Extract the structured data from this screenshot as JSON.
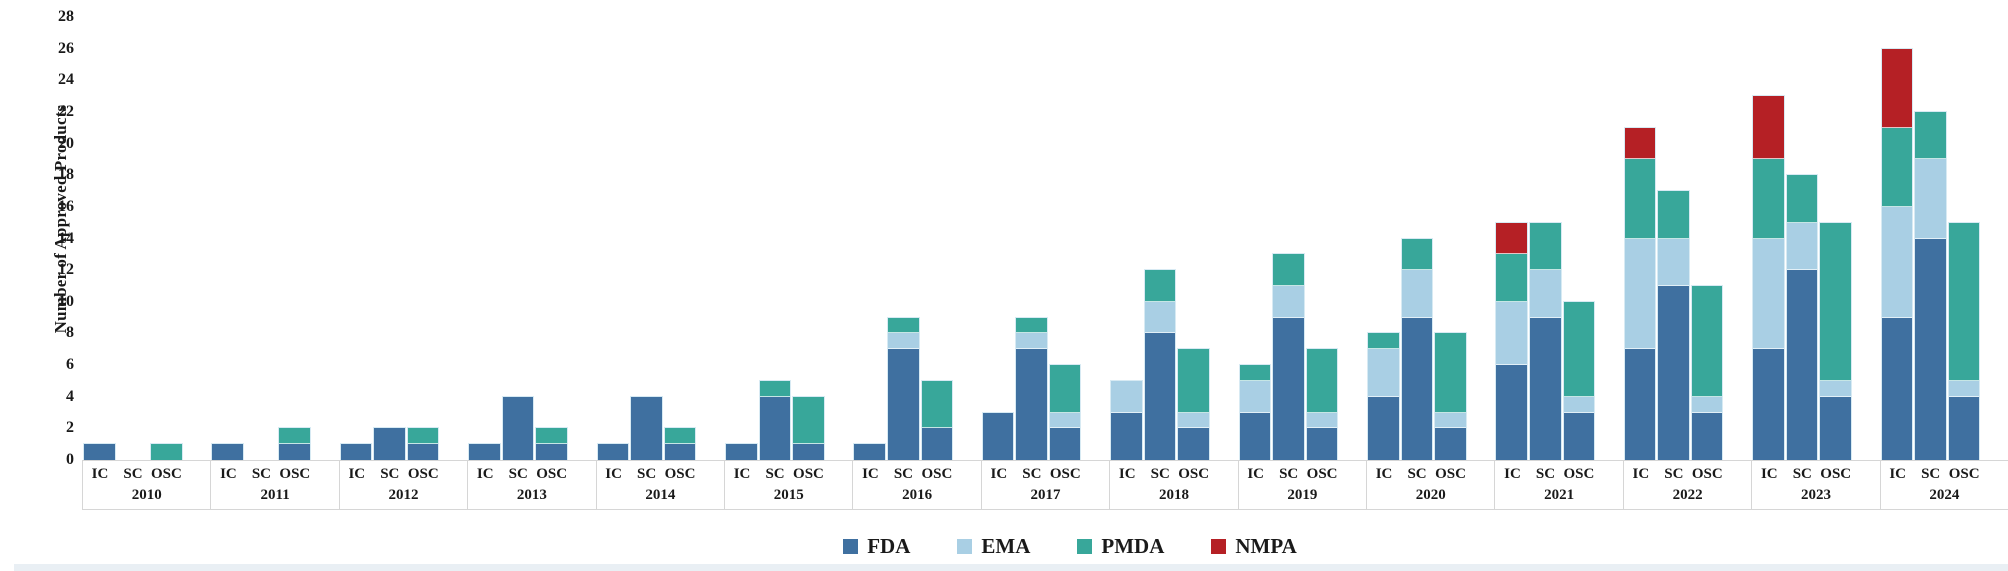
{
  "y_axis": {
    "title": "Number of Approved Products",
    "tick_labels": [
      "0",
      "2",
      "4",
      "6",
      "8",
      "10",
      "12",
      "14",
      "16",
      "18",
      "20",
      "22",
      "24",
      "26",
      "28"
    ]
  },
  "legend": {
    "entries": [
      {
        "label": "FDA",
        "color": "#3f70a0"
      },
      {
        "label": "EMA",
        "color": "#a9cfe4"
      },
      {
        "label": "PMDA",
        "color": "#38a79a"
      },
      {
        "label": "NMPA",
        "color": "#b52025"
      }
    ]
  },
  "chart_data": {
    "type": "bar",
    "stacked": true,
    "title": "",
    "xlabel": "",
    "ylabel": "Number of Approved Products",
    "ylim": [
      0,
      28
    ],
    "ytick_step": 2,
    "yticks": [
      0,
      2,
      4,
      6,
      8,
      10,
      12,
      14,
      16,
      18,
      20,
      22,
      24,
      26,
      28
    ],
    "grid": false,
    "legend_position": "bottom",
    "sub_categories": [
      "IC",
      "SC",
      "OSC"
    ],
    "series_names": [
      "FDA",
      "EMA",
      "PMDA",
      "NMPA"
    ],
    "colors": {
      "FDA": "#3f70a0",
      "EMA": "#a9cfe4",
      "PMDA": "#38a79a",
      "NMPA": "#b52025"
    },
    "years": [
      {
        "label": "2010",
        "IC": [
          [
            "FDA",
            1
          ]
        ],
        "SC": [],
        "OSC": [
          [
            "PMDA",
            1
          ]
        ]
      },
      {
        "label": "2011",
        "IC": [
          [
            "FDA",
            1
          ]
        ],
        "SC": [],
        "OSC": [
          [
            "FDA",
            1
          ],
          [
            "PMDA",
            1
          ]
        ]
      },
      {
        "label": "2012",
        "IC": [
          [
            "FDA",
            1
          ]
        ],
        "SC": [
          [
            "FDA",
            2
          ]
        ],
        "OSC": [
          [
            "FDA",
            1
          ],
          [
            "PMDA",
            1
          ]
        ]
      },
      {
        "label": "2013",
        "IC": [
          [
            "FDA",
            1
          ]
        ],
        "SC": [
          [
            "FDA",
            4
          ]
        ],
        "OSC": [
          [
            "FDA",
            1
          ],
          [
            "PMDA",
            1
          ]
        ]
      },
      {
        "label": "2014",
        "IC": [
          [
            "FDA",
            1
          ]
        ],
        "SC": [
          [
            "FDA",
            4
          ]
        ],
        "OSC": [
          [
            "FDA",
            1
          ],
          [
            "PMDA",
            1
          ]
        ]
      },
      {
        "label": "2015",
        "IC": [
          [
            "FDA",
            1
          ]
        ],
        "SC": [
          [
            "FDA",
            4
          ],
          [
            "PMDA",
            1
          ]
        ],
        "OSC": [
          [
            "FDA",
            1
          ],
          [
            "PMDA",
            3
          ]
        ]
      },
      {
        "label": "2016",
        "IC": [
          [
            "FDA",
            1
          ]
        ],
        "SC": [
          [
            "FDA",
            7
          ],
          [
            "EMA",
            1
          ],
          [
            "PMDA",
            1
          ]
        ],
        "OSC": [
          [
            "FDA",
            2
          ],
          [
            "PMDA",
            3
          ]
        ]
      },
      {
        "label": "2017",
        "IC": [
          [
            "FDA",
            3
          ]
        ],
        "SC": [
          [
            "FDA",
            7
          ],
          [
            "EMA",
            1
          ],
          [
            "PMDA",
            1
          ]
        ],
        "OSC": [
          [
            "FDA",
            2
          ],
          [
            "EMA",
            1
          ],
          [
            "PMDA",
            3
          ]
        ]
      },
      {
        "label": "2018",
        "IC": [
          [
            "FDA",
            3
          ],
          [
            "EMA",
            2
          ]
        ],
        "SC": [
          [
            "FDA",
            8
          ],
          [
            "EMA",
            2
          ],
          [
            "PMDA",
            2
          ]
        ],
        "OSC": [
          [
            "FDA",
            2
          ],
          [
            "EMA",
            1
          ],
          [
            "PMDA",
            4
          ]
        ]
      },
      {
        "label": "2019",
        "IC": [
          [
            "FDA",
            3
          ],
          [
            "EMA",
            2
          ],
          [
            "PMDA",
            1
          ]
        ],
        "SC": [
          [
            "FDA",
            9
          ],
          [
            "EMA",
            2
          ],
          [
            "PMDA",
            2
          ]
        ],
        "OSC": [
          [
            "FDA",
            2
          ],
          [
            "EMA",
            1
          ],
          [
            "PMDA",
            4
          ]
        ]
      },
      {
        "label": "2020",
        "IC": [
          [
            "FDA",
            4
          ],
          [
            "EMA",
            3
          ],
          [
            "PMDA",
            1
          ]
        ],
        "SC": [
          [
            "FDA",
            9
          ],
          [
            "EMA",
            3
          ],
          [
            "PMDA",
            2
          ]
        ],
        "OSC": [
          [
            "FDA",
            2
          ],
          [
            "EMA",
            1
          ],
          [
            "PMDA",
            5
          ]
        ]
      },
      {
        "label": "2021",
        "IC": [
          [
            "FDA",
            6
          ],
          [
            "EMA",
            4
          ],
          [
            "PMDA",
            3
          ],
          [
            "NMPA",
            2
          ]
        ],
        "SC": [
          [
            "FDA",
            9
          ],
          [
            "EMA",
            3
          ],
          [
            "PMDA",
            3
          ]
        ],
        "OSC": [
          [
            "FDA",
            3
          ],
          [
            "EMA",
            1
          ],
          [
            "PMDA",
            6
          ]
        ]
      },
      {
        "label": "2022",
        "IC": [
          [
            "FDA",
            7
          ],
          [
            "EMA",
            7
          ],
          [
            "PMDA",
            5
          ],
          [
            "NMPA",
            2
          ]
        ],
        "SC": [
          [
            "FDA",
            11
          ],
          [
            "EMA",
            3
          ],
          [
            "PMDA",
            3
          ]
        ],
        "OSC": [
          [
            "FDA",
            3
          ],
          [
            "EMA",
            1
          ],
          [
            "PMDA",
            7
          ]
        ]
      },
      {
        "label": "2023",
        "IC": [
          [
            "FDA",
            7
          ],
          [
            "EMA",
            7
          ],
          [
            "PMDA",
            5
          ],
          [
            "NMPA",
            4
          ]
        ],
        "SC": [
          [
            "FDA",
            12
          ],
          [
            "EMA",
            3
          ],
          [
            "PMDA",
            3
          ]
        ],
        "OSC": [
          [
            "FDA",
            4
          ],
          [
            "EMA",
            1
          ],
          [
            "PMDA",
            10
          ]
        ]
      },
      {
        "label": "2024",
        "IC": [
          [
            "FDA",
            9
          ],
          [
            "EMA",
            7
          ],
          [
            "PMDA",
            5
          ],
          [
            "NMPA",
            5
          ]
        ],
        "SC": [
          [
            "FDA",
            14
          ],
          [
            "EMA",
            5
          ],
          [
            "PMDA",
            3
          ]
        ],
        "OSC": [
          [
            "FDA",
            4
          ],
          [
            "EMA",
            1
          ],
          [
            "PMDA",
            10
          ]
        ]
      }
    ]
  }
}
